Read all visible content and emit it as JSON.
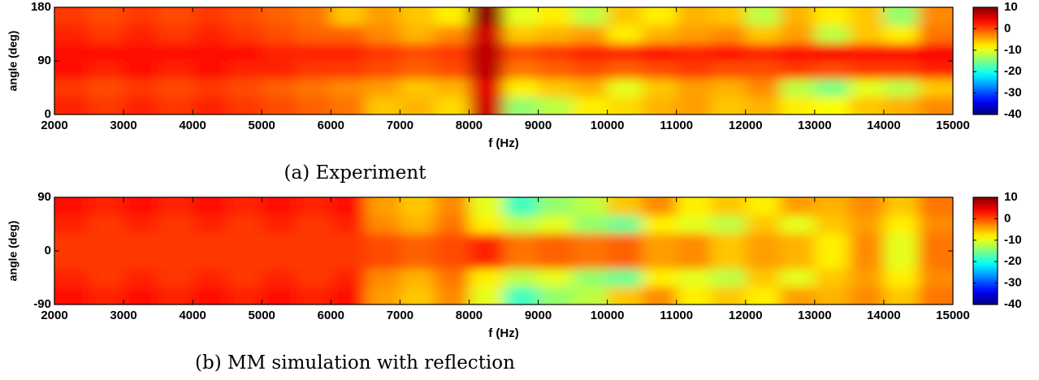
{
  "chart_data": [
    {
      "type": "heatmap",
      "xlabel": "f (Hz)",
      "ylabel": "angle (deg)",
      "caption": "(a) Experiment",
      "colormap": "jet",
      "x": [
        2250,
        2750,
        3250,
        3750,
        4250,
        4750,
        5250,
        5750,
        6250,
        6750,
        7250,
        7750,
        8250,
        8750,
        9250,
        9750,
        10250,
        10750,
        11250,
        11750,
        12250,
        12750,
        13250,
        13750,
        14250,
        14750
      ],
      "y": [
        15,
        45,
        75,
        105,
        135,
        165
      ],
      "values": [
        [
          2,
          1,
          2,
          1,
          2,
          1,
          0,
          -1,
          -2,
          -6,
          -5,
          -7,
          6,
          -14,
          -12,
          -8,
          -7,
          -5,
          -4,
          -6,
          -5,
          -8,
          -9,
          -6,
          -5,
          -3
        ],
        [
          1,
          0,
          1,
          0,
          1,
          0,
          -1,
          -2,
          -3,
          -4,
          -6,
          -5,
          5,
          -8,
          -6,
          -5,
          -10,
          -6,
          -4,
          -5,
          -3,
          -12,
          -15,
          -10,
          -12,
          -6
        ],
        [
          3,
          2,
          3,
          2,
          3,
          2,
          2,
          1,
          1,
          0,
          -1,
          0,
          7,
          -2,
          -1,
          0,
          -1,
          0,
          1,
          0,
          0,
          1,
          0,
          1,
          1,
          2
        ],
        [
          3,
          3,
          3,
          3,
          3,
          3,
          2,
          2,
          2,
          1,
          0,
          1,
          7,
          0,
          1,
          2,
          2,
          3,
          2,
          3,
          2,
          3,
          4,
          3,
          3,
          4
        ],
        [
          2,
          1,
          2,
          1,
          2,
          1,
          0,
          -1,
          -1,
          -3,
          -5,
          -3,
          6,
          -6,
          -5,
          -4,
          -8,
          -5,
          -4,
          -3,
          -6,
          -4,
          -12,
          -6,
          -8,
          -2
        ],
        [
          1,
          0,
          1,
          0,
          1,
          0,
          -1,
          -2,
          -6,
          -4,
          -6,
          -8,
          9,
          -10,
          -8,
          -12,
          -6,
          -8,
          -5,
          -6,
          -12,
          -5,
          -8,
          -6,
          -14,
          -3
        ]
      ],
      "xlim": [
        2000,
        15000
      ],
      "xticks": [
        2000,
        3000,
        4000,
        5000,
        6000,
        7000,
        8000,
        9000,
        10000,
        11000,
        12000,
        13000,
        14000,
        15000
      ],
      "ylim": [
        0,
        180
      ],
      "yticks": [
        0,
        90,
        180
      ],
      "clim": [
        -40,
        10
      ],
      "cticks": [
        -40,
        -30,
        -20,
        -10,
        0,
        10
      ]
    },
    {
      "type": "heatmap",
      "xlabel": "f (Hz)",
      "ylabel": "angle (deg)",
      "caption": "(b) MM simulation with reflection",
      "colormap": "jet",
      "x": [
        2250,
        2750,
        3250,
        3750,
        4250,
        4750,
        5250,
        5750,
        6250,
        6750,
        7250,
        7750,
        8250,
        8750,
        9250,
        9750,
        10250,
        10750,
        11250,
        11750,
        12250,
        12750,
        13250,
        13750,
        14250,
        14750
      ],
      "y": [
        -75,
        -45,
        -15,
        15,
        45,
        75
      ],
      "values": [
        [
          3,
          2,
          3,
          2,
          3,
          2,
          3,
          2,
          3,
          -4,
          -6,
          -3,
          -10,
          -18,
          -14,
          -12,
          -6,
          -3,
          -8,
          -6,
          -8,
          -4,
          -5,
          -3,
          -6,
          -2
        ],
        [
          2,
          1,
          2,
          1,
          2,
          1,
          2,
          1,
          2,
          -3,
          -5,
          -2,
          -8,
          -12,
          -10,
          -14,
          -16,
          -8,
          -10,
          -12,
          -6,
          -10,
          -6,
          -4,
          -8,
          -3
        ],
        [
          1,
          1,
          1,
          1,
          1,
          1,
          1,
          1,
          1,
          0,
          -1,
          0,
          2,
          -2,
          -1,
          -2,
          -1,
          -4,
          -3,
          -6,
          -4,
          -5,
          -8,
          -3,
          -10,
          -2
        ],
        [
          1,
          1,
          1,
          1,
          1,
          1,
          1,
          1,
          1,
          0,
          -1,
          0,
          2,
          -2,
          -1,
          -2,
          -1,
          -4,
          -3,
          -6,
          -4,
          -5,
          -8,
          -3,
          -10,
          -2
        ],
        [
          2,
          1,
          2,
          1,
          2,
          1,
          2,
          1,
          2,
          -3,
          -5,
          -2,
          -8,
          -12,
          -10,
          -14,
          -16,
          -8,
          -10,
          -12,
          -6,
          -10,
          -6,
          -4,
          -8,
          -3
        ],
        [
          3,
          2,
          3,
          2,
          3,
          2,
          3,
          2,
          3,
          -4,
          -6,
          -3,
          -10,
          -18,
          -14,
          -12,
          -6,
          -3,
          -8,
          -6,
          -8,
          -4,
          -5,
          -3,
          -6,
          -2
        ]
      ],
      "xlim": [
        2000,
        15000
      ],
      "xticks": [
        2000,
        3000,
        4000,
        5000,
        6000,
        7000,
        8000,
        9000,
        10000,
        11000,
        12000,
        13000,
        14000,
        15000
      ],
      "ylim": [
        -90,
        90
      ],
      "yticks": [
        -90,
        0,
        90
      ],
      "clim": [
        -40,
        10
      ],
      "cticks": [
        -40,
        -30,
        -20,
        -10,
        0,
        10
      ]
    }
  ]
}
